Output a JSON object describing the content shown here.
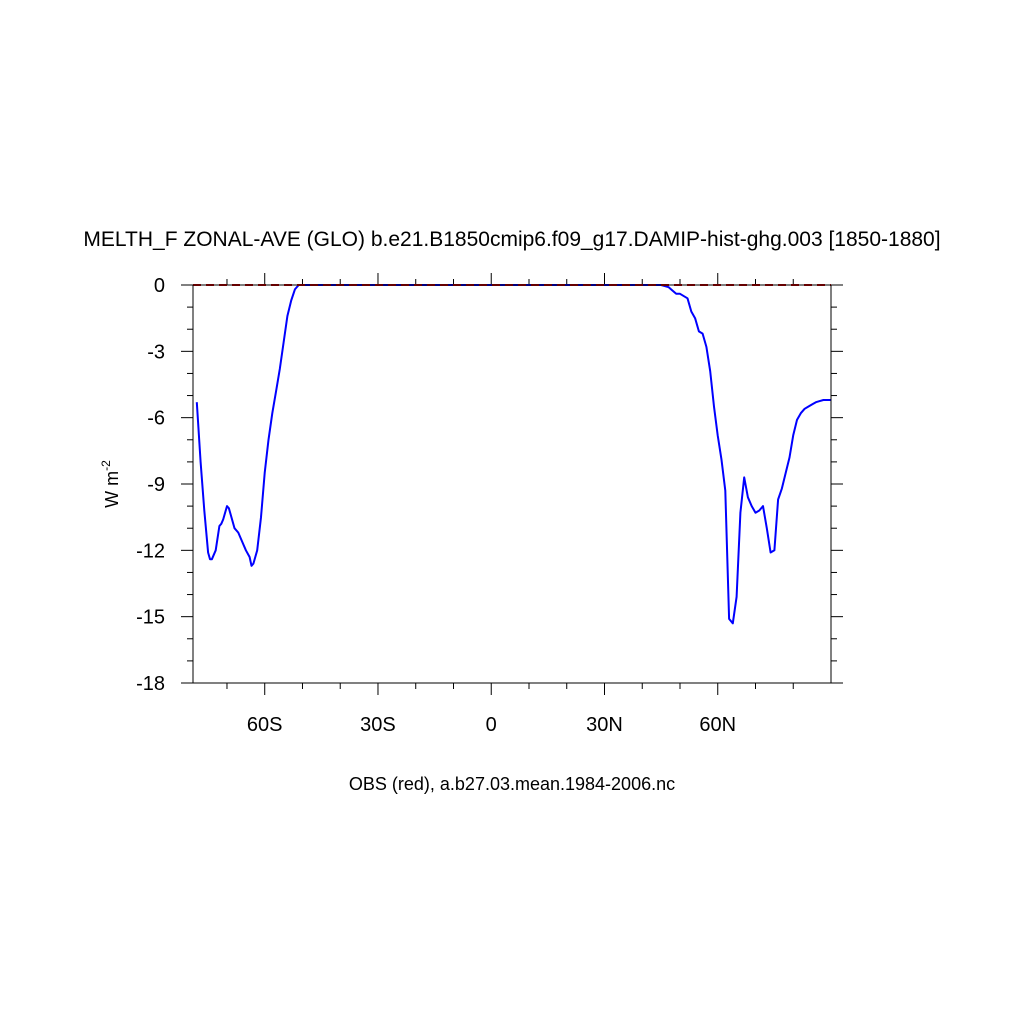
{
  "chart_data": {
    "type": "line",
    "title": "MELTH_F ZONAL-AVE (GLO) b.e21.B1850cmip6.f09_g17.DAMIP-hist-ghg.003 [1850-1880]",
    "xlabel": "OBS (red), a.b27.03.mean.1984-2006.nc",
    "ylabel": "W m",
    "ylabel_superscript": "-2",
    "xlim": [
      -79,
      90
    ],
    "ylim": [
      -18,
      0
    ],
    "y_ticks": [
      0,
      -3,
      -6,
      -9,
      -12,
      -15,
      -18
    ],
    "y_tick_labels": [
      "0",
      "-3",
      "-6",
      "-9",
      "-12",
      "-15",
      "-18"
    ],
    "x_ticks": [
      -60,
      -30,
      0,
      30,
      60
    ],
    "x_tick_labels": [
      "60S",
      "30S",
      "0",
      "30N",
      "60N"
    ],
    "grid": false,
    "series": [
      {
        "color": "#0000ff",
        "style": "solid",
        "x": [
          -78,
          -77,
          -76,
          -75,
          -74.5,
          -74,
          -73,
          -72,
          -71.5,
          -71,
          -70,
          -69.5,
          -69,
          -68,
          -67,
          -66,
          -65,
          -64,
          -63.5,
          -63,
          -62,
          -61,
          -60,
          -59,
          -58,
          -57,
          -56,
          -55,
          -54,
          -53,
          -52,
          -51,
          -50,
          -49,
          -45,
          0,
          45,
          47,
          48,
          49,
          50,
          52,
          53,
          54,
          55,
          56,
          57,
          58,
          59,
          60,
          61,
          62,
          63,
          64,
          65,
          66,
          67,
          68,
          69,
          70,
          71,
          72,
          73,
          74,
          75,
          76,
          77,
          78,
          79,
          80,
          81,
          82,
          83,
          84,
          85,
          86,
          87,
          88,
          89,
          90
        ],
        "y": [
          -5.3,
          -8.0,
          -10.2,
          -12.1,
          -12.4,
          -12.4,
          -12.0,
          -10.9,
          -10.8,
          -10.6,
          -10.0,
          -10.1,
          -10.4,
          -11.0,
          -11.2,
          -11.6,
          -12.0,
          -12.3,
          -12.7,
          -12.6,
          -12.0,
          -10.5,
          -8.5,
          -7.0,
          -5.8,
          -4.8,
          -3.8,
          -2.6,
          -1.4,
          -0.7,
          -0.2,
          0.0,
          0.0,
          0.0,
          0.0,
          0.0,
          0.0,
          -0.1,
          -0.25,
          -0.4,
          -0.4,
          -0.6,
          -1.2,
          -1.5,
          -2.1,
          -2.2,
          -2.8,
          -3.9,
          -5.5,
          -6.8,
          -7.9,
          -9.3,
          -15.1,
          -15.3,
          -14.1,
          -10.3,
          -8.7,
          -9.6,
          -10.0,
          -10.3,
          -10.2,
          -10.0,
          -11.0,
          -12.1,
          -12.0,
          -9.7,
          -9.2,
          -8.5,
          -7.8,
          -6.8,
          -6.1,
          -5.8,
          -5.6,
          -5.5,
          -5.4,
          -5.3,
          -5.25,
          -5.2,
          -5.2,
          -5.2
        ]
      },
      {
        "color": "#cc0000",
        "style": "dashed",
        "x": [
          -79,
          90
        ],
        "y": [
          0,
          0
        ]
      }
    ]
  }
}
